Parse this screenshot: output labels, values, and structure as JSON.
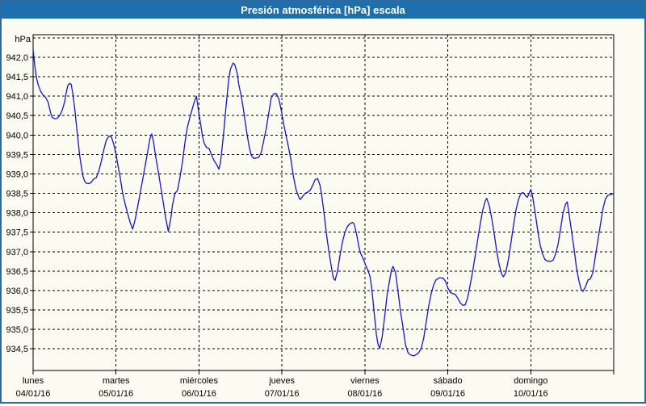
{
  "title": "Presión atmosférica [hPa] escala",
  "colors": {
    "frame_border": "#31699C",
    "titlebar_bg": "#1E6FAD",
    "titlebar_text": "#FFFFFF",
    "background": "#FBFBF2",
    "grid": "#000000",
    "curve": "#1515CD",
    "text": "#000000"
  },
  "chart_data": {
    "type": "line",
    "title": "Presión atmosférica [hPa] escala",
    "y_unit_label": "hPa",
    "ylabel": "",
    "xlabel": "",
    "grid": true,
    "legend_position": "none",
    "ylim": [
      933.95,
      942.6
    ],
    "xlim_days": [
      0,
      7
    ],
    "y_gridline_values": [
      942.5,
      942.0,
      941.5,
      941.0,
      940.5,
      940.0,
      939.5,
      939.0,
      938.5,
      938.0,
      937.5,
      937.0,
      936.5,
      936.0,
      935.5,
      935.0,
      934.5
    ],
    "y_tick_values": [
      942.0,
      941.5,
      941.0,
      940.5,
      940.0,
      939.5,
      939.0,
      938.5,
      938.0,
      937.5,
      937.0,
      936.5,
      936.0,
      935.5,
      935.0,
      934.5
    ],
    "y_tick_labels": [
      "942,0",
      "941,5",
      "941,0",
      "940,5",
      "940,0",
      "939,5",
      "939,0",
      "938,5",
      "938,0",
      "937,5",
      "937,0",
      "936,5",
      "936,0",
      "935,5",
      "935,0",
      "934,5"
    ],
    "x_days": [
      {
        "name": "lunes",
        "date": "04/01/16"
      },
      {
        "name": "martes",
        "date": "05/01/16"
      },
      {
        "name": "miércoles",
        "date": "06/01/16"
      },
      {
        "name": "jueves",
        "date": "07/01/16"
      },
      {
        "name": "viernes",
        "date": "08/01/16"
      },
      {
        "name": "sábado",
        "date": "09/01/16"
      },
      {
        "name": "domingo",
        "date": "10/01/16"
      }
    ],
    "series": [
      {
        "name": "Presión atmosférica",
        "color": "#1515CD",
        "points": [
          [
            0.0,
            942.2
          ],
          [
            0.02,
            941.78
          ],
          [
            0.04,
            941.48
          ],
          [
            0.06,
            941.3
          ],
          [
            0.09,
            941.13
          ],
          [
            0.12,
            941.03
          ],
          [
            0.15,
            940.97
          ],
          [
            0.18,
            940.85
          ],
          [
            0.21,
            940.58
          ],
          [
            0.23,
            940.45
          ],
          [
            0.26,
            940.42
          ],
          [
            0.29,
            940.43
          ],
          [
            0.32,
            940.5
          ],
          [
            0.35,
            940.63
          ],
          [
            0.38,
            940.85
          ],
          [
            0.4,
            941.1
          ],
          [
            0.42,
            941.28
          ],
          [
            0.44,
            941.33
          ],
          [
            0.46,
            941.3
          ],
          [
            0.48,
            941.05
          ],
          [
            0.5,
            940.7
          ],
          [
            0.52,
            940.3
          ],
          [
            0.54,
            939.9
          ],
          [
            0.56,
            939.5
          ],
          [
            0.58,
            939.2
          ],
          [
            0.6,
            938.95
          ],
          [
            0.62,
            938.82
          ],
          [
            0.64,
            938.76
          ],
          [
            0.67,
            938.75
          ],
          [
            0.7,
            938.78
          ],
          [
            0.73,
            938.87
          ],
          [
            0.76,
            938.9
          ],
          [
            0.79,
            939.05
          ],
          [
            0.82,
            939.3
          ],
          [
            0.85,
            939.6
          ],
          [
            0.88,
            939.85
          ],
          [
            0.91,
            939.96
          ],
          [
            0.94,
            939.97
          ],
          [
            0.97,
            939.78
          ],
          [
            1.0,
            939.5
          ],
          [
            1.02,
            939.25
          ],
          [
            1.05,
            938.9
          ],
          [
            1.08,
            938.5
          ],
          [
            1.11,
            938.22
          ],
          [
            1.14,
            937.98
          ],
          [
            1.17,
            937.75
          ],
          [
            1.2,
            937.58
          ],
          [
            1.23,
            937.82
          ],
          [
            1.26,
            938.15
          ],
          [
            1.29,
            938.5
          ],
          [
            1.32,
            938.85
          ],
          [
            1.35,
            939.2
          ],
          [
            1.38,
            939.55
          ],
          [
            1.41,
            939.92
          ],
          [
            1.43,
            940.03
          ],
          [
            1.45,
            939.85
          ],
          [
            1.48,
            939.42
          ],
          [
            1.51,
            939.05
          ],
          [
            1.54,
            938.65
          ],
          [
            1.57,
            938.25
          ],
          [
            1.6,
            937.85
          ],
          [
            1.63,
            937.52
          ],
          [
            1.66,
            937.85
          ],
          [
            1.68,
            938.2
          ],
          [
            1.71,
            938.5
          ],
          [
            1.74,
            938.57
          ],
          [
            1.77,
            938.9
          ],
          [
            1.8,
            939.3
          ],
          [
            1.83,
            939.8
          ],
          [
            1.86,
            940.2
          ],
          [
            1.89,
            940.45
          ],
          [
            1.92,
            940.68
          ],
          [
            1.95,
            940.9
          ],
          [
            1.97,
            941.0
          ],
          [
            2.0,
            940.55
          ],
          [
            2.02,
            940.28
          ],
          [
            2.04,
            940.0
          ],
          [
            2.06,
            939.8
          ],
          [
            2.09,
            939.68
          ],
          [
            2.12,
            939.66
          ],
          [
            2.15,
            939.5
          ],
          [
            2.18,
            939.35
          ],
          [
            2.21,
            939.25
          ],
          [
            2.24,
            939.12
          ],
          [
            2.26,
            939.3
          ],
          [
            2.28,
            939.7
          ],
          [
            2.3,
            940.1
          ],
          [
            2.32,
            940.6
          ],
          [
            2.34,
            941.05
          ],
          [
            2.36,
            941.45
          ],
          [
            2.38,
            941.7
          ],
          [
            2.41,
            941.85
          ],
          [
            2.43,
            941.82
          ],
          [
            2.46,
            941.6
          ],
          [
            2.48,
            941.3
          ],
          [
            2.51,
            941.0
          ],
          [
            2.54,
            940.6
          ],
          [
            2.57,
            940.15
          ],
          [
            2.6,
            939.75
          ],
          [
            2.63,
            939.48
          ],
          [
            2.66,
            939.4
          ],
          [
            2.69,
            939.41
          ],
          [
            2.72,
            939.43
          ],
          [
            2.75,
            939.55
          ],
          [
            2.78,
            939.85
          ],
          [
            2.81,
            940.15
          ],
          [
            2.84,
            940.55
          ],
          [
            2.87,
            940.95
          ],
          [
            2.9,
            941.06
          ],
          [
            2.93,
            941.07
          ],
          [
            2.96,
            940.95
          ],
          [
            2.98,
            940.76
          ],
          [
            3.0,
            940.55
          ],
          [
            3.02,
            940.3
          ],
          [
            3.05,
            939.98
          ],
          [
            3.08,
            939.68
          ],
          [
            3.11,
            939.35
          ],
          [
            3.14,
            938.92
          ],
          [
            3.17,
            938.6
          ],
          [
            3.2,
            938.42
          ],
          [
            3.22,
            938.34
          ],
          [
            3.25,
            938.42
          ],
          [
            3.28,
            938.5
          ],
          [
            3.31,
            938.53
          ],
          [
            3.34,
            938.58
          ],
          [
            3.37,
            938.7
          ],
          [
            3.4,
            938.85
          ],
          [
            3.43,
            938.88
          ],
          [
            3.46,
            938.7
          ],
          [
            3.48,
            938.45
          ],
          [
            3.51,
            937.95
          ],
          [
            3.54,
            937.4
          ],
          [
            3.57,
            936.95
          ],
          [
            3.6,
            936.55
          ],
          [
            3.62,
            936.32
          ],
          [
            3.64,
            936.26
          ],
          [
            3.67,
            936.5
          ],
          [
            3.7,
            936.9
          ],
          [
            3.73,
            937.25
          ],
          [
            3.76,
            937.5
          ],
          [
            3.79,
            937.65
          ],
          [
            3.82,
            937.72
          ],
          [
            3.85,
            937.75
          ],
          [
            3.87,
            937.72
          ],
          [
            3.9,
            937.45
          ],
          [
            3.93,
            937.1
          ],
          [
            3.95,
            936.95
          ],
          [
            3.98,
            936.82
          ],
          [
            4.0,
            936.7
          ],
          [
            4.03,
            936.55
          ],
          [
            4.06,
            936.38
          ],
          [
            4.08,
            936.1
          ],
          [
            4.1,
            935.7
          ],
          [
            4.12,
            935.25
          ],
          [
            4.14,
            934.85
          ],
          [
            4.16,
            934.6
          ],
          [
            4.18,
            934.52
          ],
          [
            4.21,
            934.82
          ],
          [
            4.24,
            935.35
          ],
          [
            4.27,
            935.92
          ],
          [
            4.3,
            936.28
          ],
          [
            4.32,
            936.52
          ],
          [
            4.34,
            936.62
          ],
          [
            4.37,
            936.45
          ],
          [
            4.4,
            935.98
          ],
          [
            4.43,
            935.45
          ],
          [
            4.46,
            935.05
          ],
          [
            4.49,
            934.6
          ],
          [
            4.52,
            934.4
          ],
          [
            4.55,
            934.34
          ],
          [
            4.59,
            934.32
          ],
          [
            4.62,
            934.35
          ],
          [
            4.65,
            934.4
          ],
          [
            4.68,
            934.52
          ],
          [
            4.71,
            934.78
          ],
          [
            4.74,
            935.2
          ],
          [
            4.77,
            935.6
          ],
          [
            4.8,
            935.92
          ],
          [
            4.83,
            936.15
          ],
          [
            4.86,
            936.28
          ],
          [
            4.9,
            936.33
          ],
          [
            4.94,
            936.32
          ],
          [
            4.97,
            936.25
          ],
          [
            5.0,
            936.07
          ],
          [
            5.03,
            935.95
          ],
          [
            5.06,
            935.92
          ],
          [
            5.09,
            935.9
          ],
          [
            5.12,
            935.8
          ],
          [
            5.15,
            935.68
          ],
          [
            5.18,
            935.62
          ],
          [
            5.21,
            935.63
          ],
          [
            5.24,
            935.82
          ],
          [
            5.27,
            936.15
          ],
          [
            5.3,
            936.5
          ],
          [
            5.33,
            936.9
          ],
          [
            5.36,
            937.3
          ],
          [
            5.39,
            937.7
          ],
          [
            5.42,
            938.05
          ],
          [
            5.45,
            938.3
          ],
          [
            5.47,
            938.37
          ],
          [
            5.5,
            938.18
          ],
          [
            5.53,
            937.85
          ],
          [
            5.56,
            937.45
          ],
          [
            5.59,
            937.0
          ],
          [
            5.62,
            936.65
          ],
          [
            5.65,
            936.42
          ],
          [
            5.67,
            936.35
          ],
          [
            5.7,
            936.47
          ],
          [
            5.73,
            936.8
          ],
          [
            5.76,
            937.2
          ],
          [
            5.79,
            937.65
          ],
          [
            5.82,
            938.05
          ],
          [
            5.85,
            938.33
          ],
          [
            5.88,
            938.5
          ],
          [
            5.91,
            938.52
          ],
          [
            5.94,
            938.43
          ],
          [
            5.96,
            938.4
          ],
          [
            5.98,
            938.5
          ],
          [
            6.0,
            938.6
          ],
          [
            6.02,
            938.45
          ],
          [
            6.05,
            938.05
          ],
          [
            6.08,
            937.6
          ],
          [
            6.11,
            937.2
          ],
          [
            6.14,
            936.95
          ],
          [
            6.17,
            936.8
          ],
          [
            6.2,
            936.76
          ],
          [
            6.24,
            936.75
          ],
          [
            6.27,
            936.78
          ],
          [
            6.3,
            936.95
          ],
          [
            6.33,
            937.2
          ],
          [
            6.36,
            937.6
          ],
          [
            6.39,
            938.0
          ],
          [
            6.42,
            938.22
          ],
          [
            6.44,
            938.28
          ],
          [
            6.46,
            938.0
          ],
          [
            6.49,
            937.55
          ],
          [
            6.52,
            937.1
          ],
          [
            6.55,
            936.6
          ],
          [
            6.58,
            936.25
          ],
          [
            6.61,
            936.02
          ],
          [
            6.63,
            935.98
          ],
          [
            6.66,
            936.1
          ],
          [
            6.69,
            936.27
          ],
          [
            6.72,
            936.3
          ],
          [
            6.75,
            936.47
          ],
          [
            6.78,
            936.9
          ],
          [
            6.81,
            937.3
          ],
          [
            6.84,
            937.7
          ],
          [
            6.87,
            938.1
          ],
          [
            6.9,
            938.35
          ],
          [
            6.93,
            938.45
          ],
          [
            6.97,
            938.47
          ],
          [
            7.0,
            938.5
          ]
        ]
      }
    ]
  }
}
